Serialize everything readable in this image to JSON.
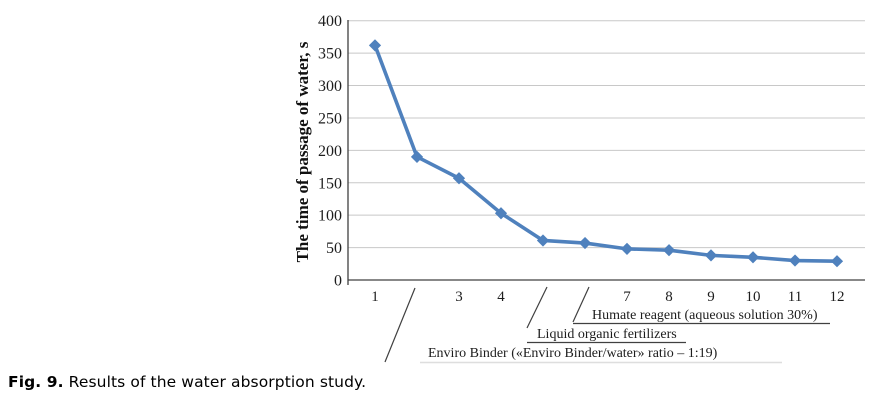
{
  "figure": {
    "caption_label": "Fig. 9.",
    "caption_text": " Results of the water absorption study."
  },
  "chart_data": {
    "type": "line",
    "title": "",
    "xlabel": "",
    "ylabel": "The time of passage of water, s",
    "x": [
      1,
      2,
      3,
      4,
      5,
      6,
      7,
      8,
      9,
      10,
      11,
      12
    ],
    "xtick_labels": [
      "1",
      "",
      "3",
      "4",
      "",
      "",
      "7",
      "8",
      "9",
      "10",
      "11",
      "12"
    ],
    "values": [
      362,
      190,
      157,
      103,
      61,
      57,
      48,
      46,
      38,
      35,
      30,
      29
    ],
    "series_name": "time of passage of water",
    "ylim": [
      0,
      400
    ],
    "yticks": [
      0,
      50,
      100,
      150,
      200,
      250,
      300,
      350,
      400
    ],
    "grid": "horizontal",
    "legend": "none",
    "marker": "diamond",
    "line_color": "#4F81BD",
    "gridline_color": "#c8c8c8",
    "axis_color": "#404040",
    "annotations": [
      {
        "label": "Humate reagent (aqueous solution 30%)",
        "target_category": 6
      },
      {
        "label": "Liquid organic fertilizers",
        "target_category": 5
      },
      {
        "label": "Enviro Binder («Enviro Binder/water» ratio – 1:19)",
        "target_category": 2
      }
    ]
  }
}
